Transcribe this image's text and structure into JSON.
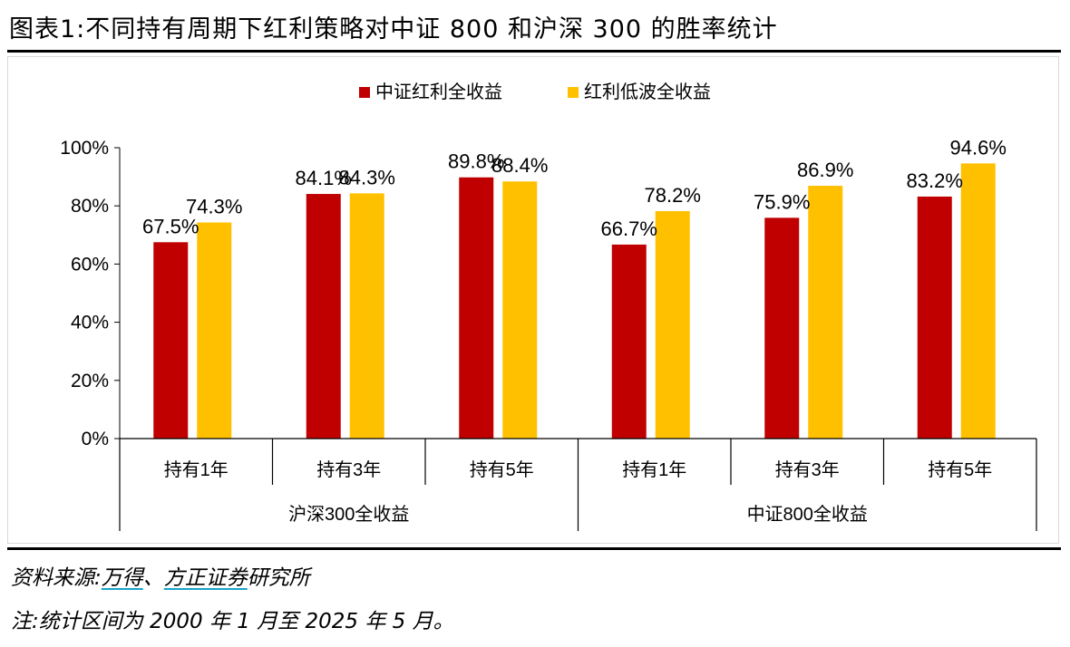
{
  "header": {
    "title": "图表1:不同持有周期下红利策略对中证 800 和沪深 300 的胜率统计"
  },
  "footer": {
    "source_label": "资料来源:",
    "source_wind": "万得",
    "source_sep": "、",
    "source_fz": "方正证券",
    "source_suffix": "研究所",
    "note": "注:统计区间为 2000 年 1 月至 2025 年 5 月。"
  },
  "colors": {
    "series1": "#c00000",
    "series2": "#ffc000",
    "axis": "#000000"
  },
  "chart_data": {
    "type": "bar",
    "title": "",
    "xlabel": "",
    "ylabel": "",
    "ylim": [
      0,
      100
    ],
    "yticks": [
      0,
      20,
      40,
      60,
      80,
      100
    ],
    "ytick_labels": [
      "0%",
      "20%",
      "40%",
      "60%",
      "80%",
      "100%"
    ],
    "legend_position": "top-center",
    "grid": false,
    "groups": [
      {
        "label": "沪深300全收益",
        "categories": [
          "持有1年",
          "持有3年",
          "持有5年"
        ]
      },
      {
        "label": "中证800全收益",
        "categories": [
          "持有1年",
          "持有3年",
          "持有5年"
        ]
      }
    ],
    "categories": [
      "持有1年",
      "持有3年",
      "持有5年",
      "持有1年",
      "持有3年",
      "持有5年"
    ],
    "series": [
      {
        "name": "中证红利全收益",
        "values": [
          67.5,
          84.1,
          89.8,
          66.7,
          75.9,
          83.2
        ],
        "labels": [
          "67.5%",
          "84.1%",
          "89.8%",
          "66.7%",
          "75.9%",
          "83.2%"
        ]
      },
      {
        "name": "红利低波全收益",
        "values": [
          74.3,
          84.3,
          88.4,
          78.2,
          86.9,
          94.6
        ],
        "labels": [
          "74.3%",
          "84.3%",
          "88.4%",
          "78.2%",
          "86.9%",
          "94.6%"
        ]
      }
    ]
  }
}
